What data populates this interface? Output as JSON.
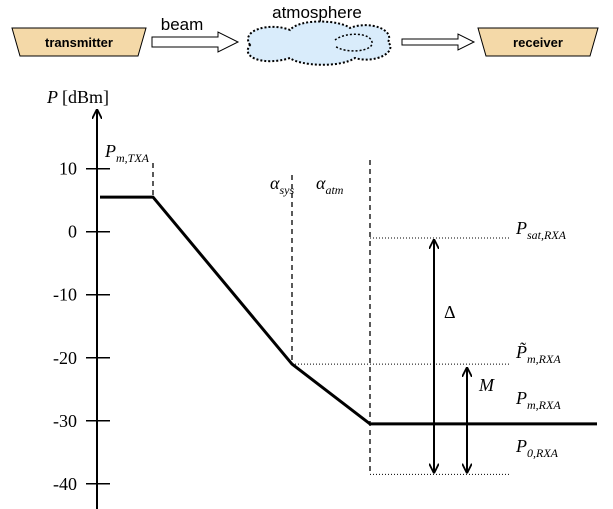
{
  "flow": {
    "transmitter": "transmitter",
    "beam": "beam",
    "atmosphere": "atmosphere",
    "receiver": "receiver"
  },
  "axis": {
    "symbol": "P",
    "unit": "[dBm]",
    "ylim": [
      -44,
      19
    ],
    "yticks": [
      10,
      0,
      -10,
      -20,
      -30,
      -40
    ]
  },
  "tx_level": {
    "symbol": "P",
    "subscript": "m,TXA"
  },
  "power_curve": [
    5.5,
    5.5,
    -21,
    -30.5,
    -30.5
  ],
  "segments": [
    {
      "symbol": "α",
      "subscript": "sys"
    },
    {
      "symbol": "α",
      "subscript": "atm"
    }
  ],
  "levels": [
    {
      "symbol": "P",
      "subscript": "sat,RXA",
      "value": -1
    },
    {
      "symbol": "P̃",
      "subscript": "m,RXA",
      "value": -21
    },
    {
      "symbol": "P",
      "subscript": "m,RXA",
      "value": -30.5
    },
    {
      "symbol": "P",
      "subscript": "0,RXA",
      "value": -38.5
    }
  ],
  "margins": {
    "delta": "Δ",
    "margin": "M"
  }
}
